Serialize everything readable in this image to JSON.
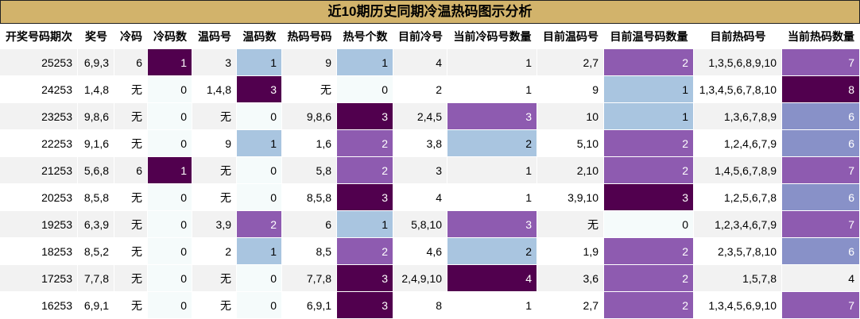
{
  "chart_data": {
    "type": "table",
    "title": "近10期历史同期冷温热码图示分析",
    "columns": [
      "开奖号码期次",
      "奖号",
      "冷码",
      "冷码数",
      "温码号",
      "温码数",
      "热码号码",
      "热号个数",
      "目前冷号",
      "当前冷码号数量",
      "目前温码号",
      "目前温号码数量",
      "目前热码号",
      "当前热码数量"
    ],
    "rows": [
      [
        "25253",
        "6,9,3",
        "6",
        1,
        "3",
        1,
        "9",
        1,
        "4",
        1,
        "2,7",
        2,
        "1,3,5,6,8,9,10",
        7
      ],
      [
        "24253",
        "1,4,8",
        "无",
        0,
        "1,4,8",
        3,
        "无",
        0,
        "2",
        1,
        "9",
        1,
        "1,3,4,5,6,7,8,10",
        8
      ],
      [
        "23253",
        "9,8,6",
        "无",
        0,
        "无",
        0,
        "9,8,6",
        3,
        "2,4,5",
        3,
        "10",
        1,
        "1,3,6,7,8,9",
        6
      ],
      [
        "22253",
        "9,1,6",
        "无",
        0,
        "9",
        1,
        "1,6",
        2,
        "3,8",
        2,
        "5,10",
        2,
        "1,2,4,6,7,9",
        6
      ],
      [
        "21253",
        "5,6,8",
        "6",
        1,
        "无",
        0,
        "5,8",
        2,
        "3",
        1,
        "2,10",
        2,
        "1,4,5,6,7,8,9",
        7
      ],
      [
        "20253",
        "8,5,8",
        "无",
        0,
        "无",
        0,
        "8,5,8",
        3,
        "4",
        1,
        "3,9,10",
        3,
        "1,2,5,6,7,8",
        6
      ],
      [
        "19253",
        "6,3,9",
        "无",
        0,
        "3,9",
        2,
        "6",
        1,
        "5,8,10",
        3,
        "无",
        0,
        "1,2,3,4,6,7,9",
        7
      ],
      [
        "18253",
        "8,5,2",
        "无",
        0,
        "2",
        1,
        "8,5",
        2,
        "4,6",
        2,
        "1,9",
        2,
        "2,3,5,7,8,10",
        6
      ],
      [
        "17253",
        "7,7,8",
        "无",
        0,
        "无",
        0,
        "7,7,8",
        3,
        "2,4,9,10",
        4,
        "3,6",
        2,
        "1,5,7,8",
        4
      ],
      [
        "16253",
        "6,9,1",
        "无",
        0,
        "无",
        0,
        "6,9,1",
        3,
        "8",
        1,
        "2,7",
        2,
        "1,3,4,5,6,9,10",
        7
      ]
    ]
  },
  "colors": {
    "title_bg": "#d2b36b",
    "row_odd": "#f2f2f2",
    "row_even": "#ffffff",
    "heat_zero": "#f5fbfb",
    "heat_low": "#a9c5e0",
    "heat_mid": "#8e5bb0",
    "heat_high": "#51004e",
    "heat_light": "#8891c8"
  }
}
